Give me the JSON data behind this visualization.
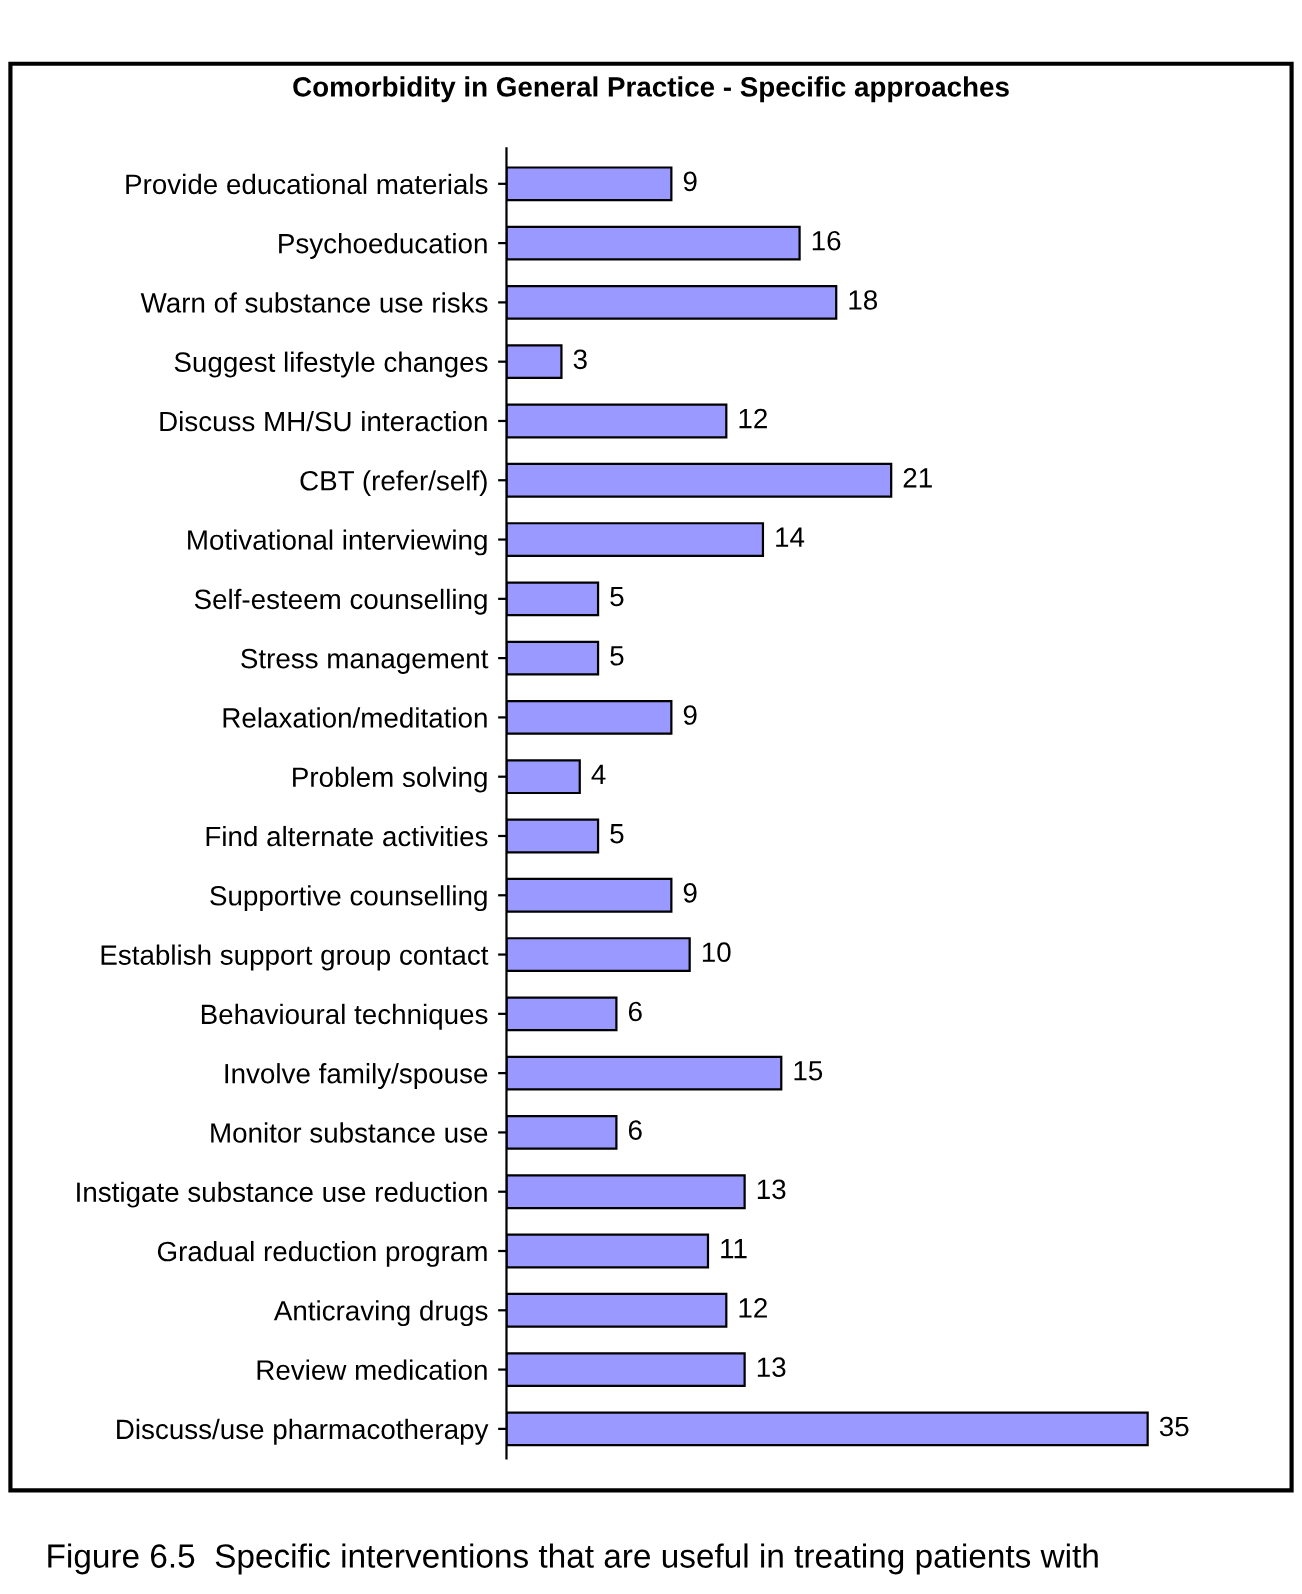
{
  "chart_data": {
    "type": "bar",
    "orientation": "horizontal",
    "title": "Comorbidity in General Practice - Specific approaches",
    "categories": [
      "Provide educational materials",
      "Psychoeducation",
      "Warn of substance use risks",
      "Suggest lifestyle changes",
      "Discuss MH/SU interaction",
      "CBT (refer/self)",
      "Motivational interviewing",
      "Self-esteem counselling",
      "Stress management",
      "Relaxation/meditation",
      "Problem solving",
      "Find alternate activities",
      "Supportive counselling",
      "Establish support group contact",
      "Behavioural techniques",
      "Involve family/spouse",
      "Monitor substance use",
      "Instigate substance use reduction",
      "Gradual reduction program",
      "Anticraving drugs",
      "Review medication",
      "Discuss/use pharmacotherapy"
    ],
    "values": [
      9,
      16,
      18,
      3,
      12,
      21,
      14,
      5,
      5,
      9,
      4,
      5,
      9,
      10,
      6,
      15,
      6,
      13,
      11,
      12,
      13,
      35
    ],
    "color": "#9999ff",
    "tick_labels": "y",
    "data_labels": true,
    "grid": false,
    "legend": false,
    "annotations": [
      "Figure 6.5  Specific interventions that are useful in treating patients with"
    ]
  }
}
